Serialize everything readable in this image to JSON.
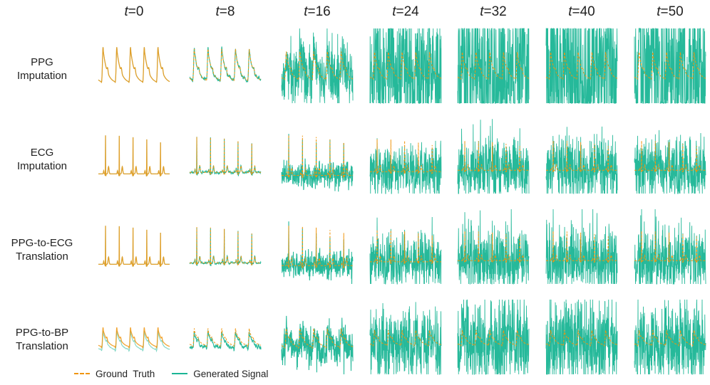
{
  "chart_data": {
    "type": "line",
    "layout": "grid",
    "column_titles": [
      {
        "var": "t",
        "value": "=0"
      },
      {
        "var": "t",
        "value": "=8"
      },
      {
        "var": "t",
        "value": "=16"
      },
      {
        "var": "t",
        "value": "=24"
      },
      {
        "var": "t",
        "value": "=32"
      },
      {
        "var": "t",
        "value": "=40"
      },
      {
        "var": "t",
        "value": "=50"
      }
    ],
    "timesteps": [
      0,
      8,
      16,
      24,
      32,
      40,
      50
    ],
    "rows": [
      {
        "line1": "PPG",
        "line2": "Imputation",
        "signal": "ppg",
        "noise": [
          0.0,
          0.12,
          0.9,
          2.2,
          3.0,
          3.0,
          3.0
        ],
        "gt_offset": 0.0
      },
      {
        "line1": "ECG",
        "line2": "Imputation",
        "signal": "ecg",
        "noise": [
          0.0,
          0.08,
          0.28,
          0.75,
          1.0,
          1.0,
          1.0
        ],
        "gt_offset": 0.0
      },
      {
        "line1": "PPG-to-ECG",
        "line2": "Translation",
        "signal": "ecg",
        "noise": [
          0.0,
          0.06,
          0.3,
          0.8,
          1.05,
          1.05,
          1.05
        ],
        "gt_offset": 0.0
      },
      {
        "line1": "PPG-to-BP",
        "line2": "Translation",
        "signal": "bp",
        "noise": [
          0.02,
          0.15,
          0.45,
          1.1,
          1.35,
          1.35,
          1.35
        ],
        "gt_offset": 0.07
      }
    ],
    "series": [
      {
        "name": "Ground  Truth",
        "style": "dashed",
        "color": "#F0950E"
      },
      {
        "name": "Generated Signal",
        "style": "solid",
        "color": "#1AB595"
      }
    ],
    "axes": "off",
    "grid": false,
    "legend": "bottom-left"
  }
}
